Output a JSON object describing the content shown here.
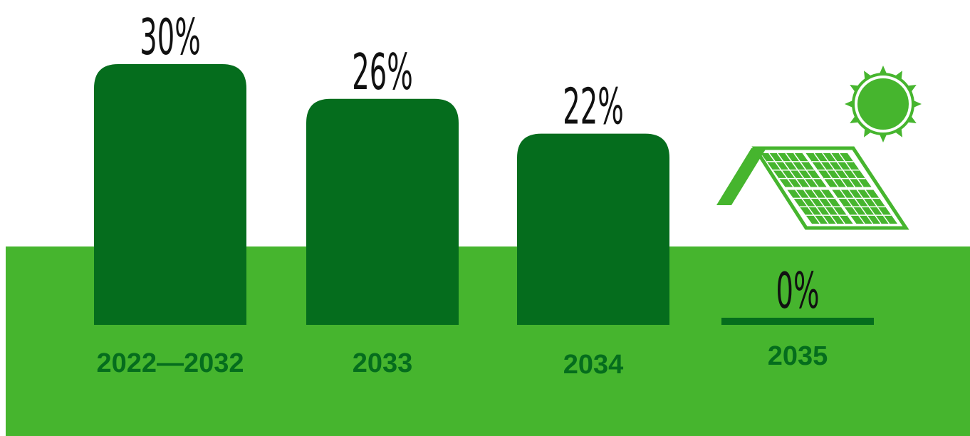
{
  "chart_data": {
    "type": "bar",
    "categories": [
      "2022—2032",
      "2033",
      "2034",
      "2035"
    ],
    "values": [
      30,
      26,
      22,
      0
    ],
    "value_labels": [
      "30%",
      "26%",
      "22%",
      "0%"
    ],
    "ylim": [
      0,
      30
    ],
    "grid": false,
    "legend": "none"
  },
  "colors": {
    "bar": "#056d1d",
    "ground": "#46b52e",
    "background": "#ffffff",
    "value_label": "#111111",
    "category_label": "#056d1d",
    "icon": "#46b52e"
  },
  "icons": [
    "sun-icon",
    "solar-roof-icon"
  ]
}
